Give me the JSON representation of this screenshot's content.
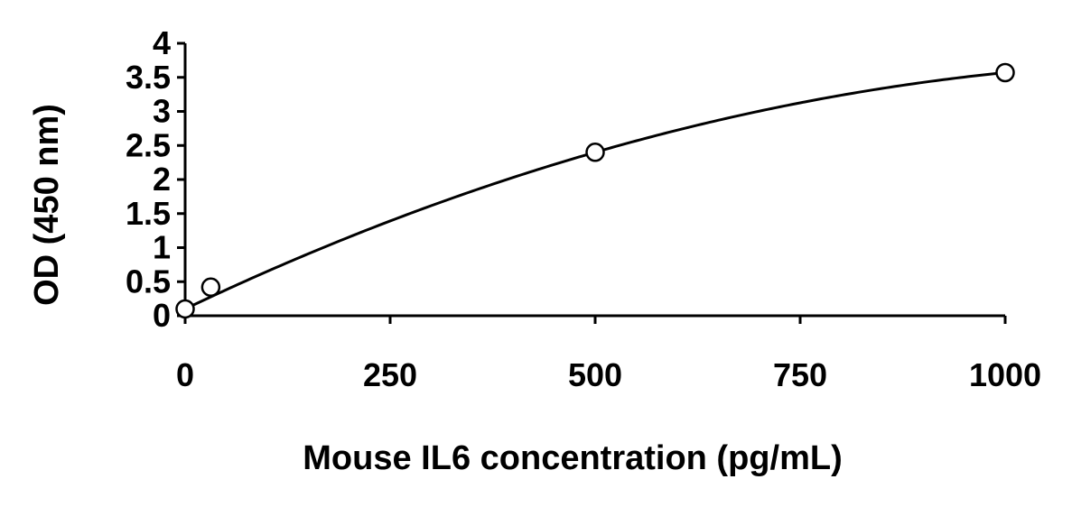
{
  "chart_data": {
    "type": "scatter",
    "title": "",
    "xlabel": "Mouse IL6 concentration (pg/mL)",
    "ylabel": "OD (450 nm)",
    "xlim": [
      0,
      1000
    ],
    "ylim": [
      0,
      4
    ],
    "x_ticks": [
      "0",
      "250",
      "500",
      "750",
      "1000"
    ],
    "y_ticks": [
      "0",
      "0.5",
      "1",
      "1.5",
      "2",
      "2.5",
      "3",
      "3.5",
      "4"
    ],
    "grid": false,
    "legend": "none",
    "series": [
      {
        "points": [
          {
            "x": 0,
            "y": 0.1
          },
          {
            "x": 31.25,
            "y": 0.42
          },
          {
            "x": 500,
            "y": 2.4
          },
          {
            "x": 1000,
            "y": 3.57
          }
        ],
        "marker": "open-circle",
        "fit_line": true
      }
    ],
    "colors": {
      "line": "#000000",
      "marker_fill": "#ffffff"
    }
  }
}
